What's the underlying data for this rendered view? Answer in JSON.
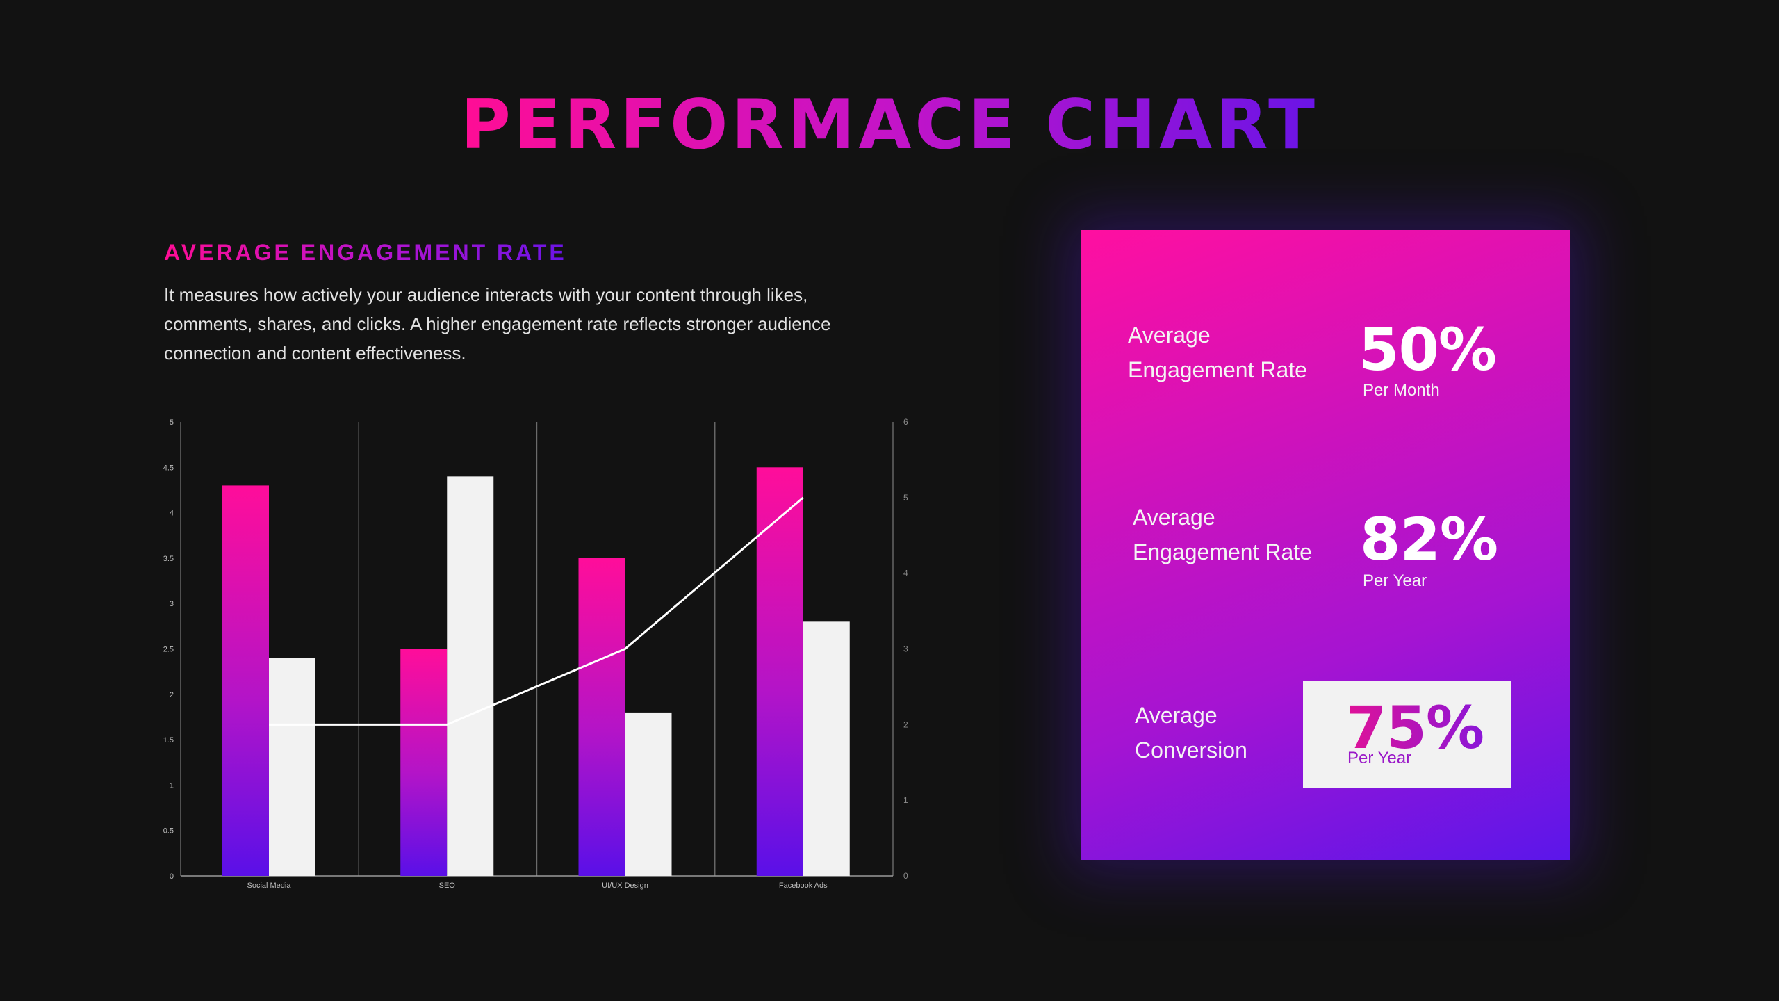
{
  "title": "PERFORMACE CHART",
  "section": {
    "heading": "AVERAGE ENGAGEMENT RATE",
    "description": "It measures how actively your audience interacts with your content through likes, comments, shares, and clicks. A higher engagement rate reflects stronger audience connection and content effectiveness."
  },
  "colors": {
    "background": "#121212",
    "accent_pink": "#ff0d95",
    "accent_purple": "#6a14e6",
    "bar_light": "#f2f2f2",
    "line": "#ffffff"
  },
  "stats": [
    {
      "label_line1": "Average",
      "label_line2": "Engagement Rate",
      "value": "50%",
      "sub": "Per Month"
    },
    {
      "label_line1": "Average",
      "label_line2": "Engagement Rate",
      "value": "82%",
      "sub": "Per Year"
    },
    {
      "label_line1": "Average",
      "label_line2": "Conversion",
      "value": "75%",
      "sub": "Per Year",
      "highlighted": true
    }
  ],
  "chart_data": {
    "type": "bar",
    "categories": [
      "Social Media",
      "SEO",
      "UI/UX Design",
      "Facebook Ads"
    ],
    "series": [
      {
        "type": "bar",
        "axis": "left",
        "color": "gradient pink-purple",
        "values": [
          4.3,
          2.5,
          3.5,
          4.5
        ]
      },
      {
        "type": "bar",
        "axis": "left",
        "color": "#f2f2f2",
        "values": [
          2.4,
          4.4,
          1.8,
          2.8
        ]
      },
      {
        "type": "line",
        "axis": "right",
        "color": "#ffffff",
        "values": [
          2,
          2,
          3,
          5
        ]
      }
    ],
    "y_left": {
      "min": 0,
      "max": 5,
      "ticks": [
        "0",
        "0.5",
        "1",
        "1.5",
        "2",
        "2.5",
        "3",
        "3.5",
        "4",
        "4.5",
        "5"
      ]
    },
    "y_right": {
      "min": 0,
      "max": 6,
      "ticks": [
        "0",
        "1",
        "2",
        "3",
        "4",
        "5",
        "6"
      ]
    },
    "grid": "vertical category separators",
    "legend": "none"
  }
}
